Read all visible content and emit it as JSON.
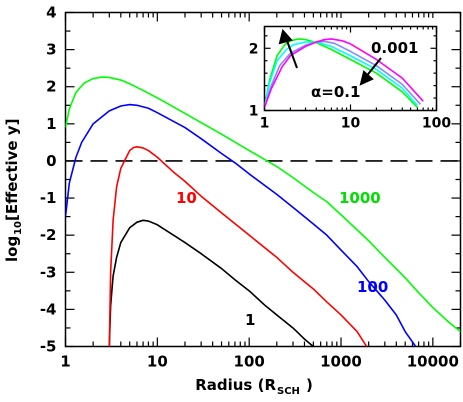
{
  "chart_data": [
    {
      "type": "line",
      "xlabel": "Radius (R",
      "xlabel_sub": "SCH",
      "xlabel_close": ")",
      "ylabel": "log",
      "ylabel_sub": "10",
      "ylabel_rest": "[Effective y]",
      "xscale": "log",
      "xlim": [
        1,
        20000
      ],
      "ylim": [
        -5,
        4
      ],
      "xticks": [
        1,
        10,
        100,
        1000,
        10000
      ],
      "xtick_labels": [
        "1",
        "10",
        "100",
        "1000",
        "10000"
      ],
      "yticks": [
        -5,
        -4,
        -3,
        -2,
        -1,
        0,
        1,
        2,
        3,
        4
      ],
      "ytick_labels": [
        "-5",
        "-4",
        "-3",
        "-2",
        "-1",
        "0",
        "1",
        "2",
        "3",
        "4"
      ],
      "reference_line": {
        "y": 0,
        "style": "dashed"
      },
      "series": [
        {
          "name": "1",
          "color": "#000000",
          "points": [
            [
              3.0,
              -5.0
            ],
            [
              3.1,
              -3.9
            ],
            [
              3.3,
              -3.1
            ],
            [
              3.6,
              -2.6
            ],
            [
              4.0,
              -2.2
            ],
            [
              5.0,
              -1.8
            ],
            [
              6.0,
              -1.65
            ],
            [
              7.0,
              -1.6
            ],
            [
              8.0,
              -1.62
            ],
            [
              10,
              -1.72
            ],
            [
              15,
              -2.0
            ],
            [
              20,
              -2.2
            ],
            [
              30,
              -2.5
            ],
            [
              50,
              -2.9
            ],
            [
              70,
              -3.2
            ],
            [
              100,
              -3.5
            ],
            [
              150,
              -3.9
            ],
            [
              200,
              -4.15
            ],
            [
              300,
              -4.5
            ],
            [
              400,
              -4.8
            ],
            [
              500,
              -5.0
            ]
          ]
        },
        {
          "name": "10",
          "color": "#ff0000",
          "points": [
            [
              3.0,
              -5.0
            ],
            [
              3.1,
              -3.0
            ],
            [
              3.3,
              -1.6
            ],
            [
              3.6,
              -0.7
            ],
            [
              4.0,
              -0.2
            ],
            [
              5.0,
              0.28
            ],
            [
              5.5,
              0.36
            ],
            [
              6.0,
              0.38
            ],
            [
              7.0,
              0.35
            ],
            [
              8.0,
              0.28
            ],
            [
              10,
              0.1
            ],
            [
              15,
              -0.3
            ],
            [
              20,
              -0.55
            ],
            [
              30,
              -0.95
            ],
            [
              50,
              -1.4
            ],
            [
              100,
              -2.0
            ],
            [
              200,
              -2.6
            ],
            [
              300,
              -3.0
            ],
            [
              500,
              -3.45
            ],
            [
              700,
              -3.8
            ],
            [
              1000,
              -4.15
            ],
            [
              1500,
              -4.6
            ],
            [
              1900,
              -5.0
            ]
          ]
        },
        {
          "name": "100",
          "color": "#0000ff",
          "points": [
            [
              1.0,
              -1.5
            ],
            [
              1.1,
              -0.6
            ],
            [
              1.3,
              0.1
            ],
            [
              1.5,
              0.5
            ],
            [
              2.0,
              1.0
            ],
            [
              3.0,
              1.35
            ],
            [
              4.0,
              1.48
            ],
            [
              5.0,
              1.52
            ],
            [
              6.0,
              1.5
            ],
            [
              8.0,
              1.42
            ],
            [
              10,
              1.3
            ],
            [
              20,
              0.9
            ],
            [
              30,
              0.6
            ],
            [
              50,
              0.2
            ],
            [
              70,
              -0.05
            ],
            [
              100,
              -0.35
            ],
            [
              200,
              -0.9
            ],
            [
              300,
              -1.25
            ],
            [
              500,
              -1.7
            ],
            [
              700,
              -2.0
            ],
            [
              1000,
              -2.4
            ],
            [
              1500,
              -2.85
            ],
            [
              2000,
              -3.25
            ],
            [
              3000,
              -3.75
            ],
            [
              4000,
              -4.15
            ],
            [
              5000,
              -4.6
            ],
            [
              6500,
              -5.0
            ]
          ]
        },
        {
          "name": "1000",
          "color": "#00ff00",
          "points": [
            [
              1.0,
              0.9
            ],
            [
              1.1,
              1.4
            ],
            [
              1.3,
              1.85
            ],
            [
              1.6,
              2.1
            ],
            [
              2.0,
              2.22
            ],
            [
              2.5,
              2.26
            ],
            [
              3.0,
              2.25
            ],
            [
              4.0,
              2.18
            ],
            [
              5.0,
              2.08
            ],
            [
              7.0,
              1.9
            ],
            [
              10,
              1.7
            ],
            [
              20,
              1.28
            ],
            [
              50,
              0.72
            ],
            [
              100,
              0.28
            ],
            [
              200,
              -0.15
            ],
            [
              300,
              -0.45
            ],
            [
              500,
              -0.85
            ],
            [
              700,
              -1.1
            ],
            [
              1000,
              -1.45
            ],
            [
              2000,
              -2.15
            ],
            [
              3000,
              -2.6
            ],
            [
              5000,
              -3.15
            ],
            [
              7000,
              -3.55
            ],
            [
              10000,
              -3.95
            ],
            [
              15000,
              -4.35
            ],
            [
              20000,
              -4.6
            ]
          ]
        }
      ],
      "annotations": [
        "10",
        "1000",
        "100",
        "1"
      ]
    },
    {
      "type": "line",
      "inset": true,
      "xscale": "log",
      "xlim": [
        1,
        100
      ],
      "ylim": [
        1,
        2.35
      ],
      "xticks": [
        1,
        10,
        100
      ],
      "xtick_labels": [
        "1",
        "10",
        "100"
      ],
      "yticks": [
        1,
        2
      ],
      "ytick_labels": [
        "1",
        "2"
      ],
      "series": [
        {
          "name": "α=0.1",
          "color": "#00ff00",
          "points": [
            [
              1.0,
              1.05
            ],
            [
              1.15,
              1.5
            ],
            [
              1.4,
              1.88
            ],
            [
              1.7,
              2.05
            ],
            [
              2.0,
              2.12
            ],
            [
              2.5,
              2.15
            ],
            [
              3.0,
              2.14
            ],
            [
              4.0,
              2.09
            ],
            [
              6.0,
              1.98
            ],
            [
              10,
              1.82
            ],
            [
              20,
              1.6
            ],
            [
              40,
              1.3
            ],
            [
              60,
              1.05
            ]
          ]
        },
        {
          "name": "",
          "color": "#00ffff",
          "points": [
            [
              1.0,
              1.05
            ],
            [
              1.15,
              1.45
            ],
            [
              1.4,
              1.8
            ],
            [
              1.8,
              1.98
            ],
            [
              2.2,
              2.06
            ],
            [
              3.0,
              2.1
            ],
            [
              4.0,
              2.1
            ],
            [
              6.0,
              2.03
            ],
            [
              10,
              1.88
            ],
            [
              20,
              1.66
            ],
            [
              40,
              1.36
            ],
            [
              60,
              1.08
            ]
          ]
        },
        {
          "name": "",
          "color": "#8888ff",
          "points": [
            [
              1.0,
              1.05
            ],
            [
              1.2,
              1.4
            ],
            [
              1.5,
              1.72
            ],
            [
              2.0,
              1.92
            ],
            [
              3.0,
              2.05
            ],
            [
              4.0,
              2.1
            ],
            [
              5.0,
              2.11
            ],
            [
              6.5,
              2.08
            ],
            [
              10,
              1.95
            ],
            [
              20,
              1.72
            ],
            [
              40,
              1.42
            ],
            [
              65,
              1.1
            ]
          ]
        },
        {
          "name": "0.001",
          "color": "#ff00ff",
          "points": [
            [
              1.0,
              1.05
            ],
            [
              1.2,
              1.35
            ],
            [
              1.6,
              1.7
            ],
            [
              2.0,
              1.88
            ],
            [
              3.0,
              2.03
            ],
            [
              4.0,
              2.1
            ],
            [
              5.0,
              2.14
            ],
            [
              6.0,
              2.15
            ],
            [
              8.0,
              2.12
            ],
            [
              10,
              2.07
            ],
            [
              20,
              1.82
            ],
            [
              40,
              1.52
            ],
            [
              70,
              1.15
            ]
          ]
        }
      ],
      "annotations": [
        "0.001",
        "α=0.1"
      ]
    }
  ]
}
